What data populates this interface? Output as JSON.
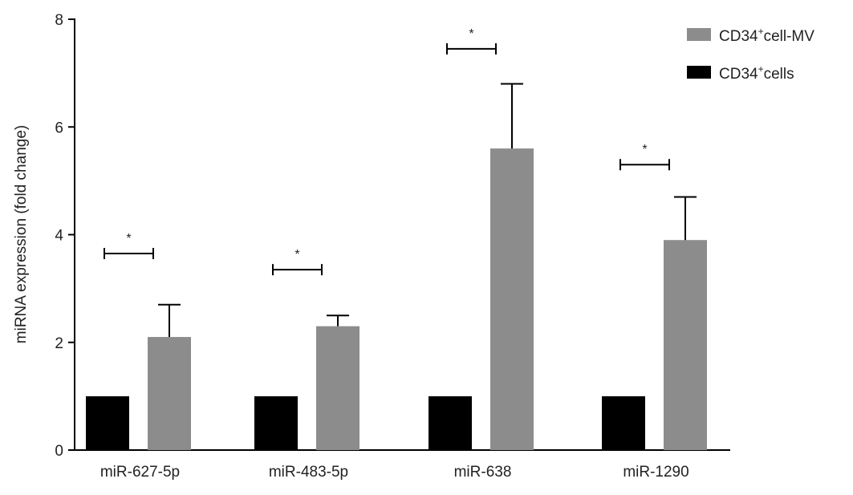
{
  "chart_data": {
    "type": "bar",
    "ylabel": "miRNA expression (fold change)",
    "ylim": [
      0,
      8
    ],
    "yticks": [
      0,
      2,
      4,
      6,
      8
    ],
    "categories": [
      "miR-627-5p",
      "miR-483-5p",
      "miR-638",
      "miR-1290"
    ],
    "series": [
      {
        "name_base": "CD34",
        "name_sup": "+",
        "name_rest": "cells",
        "color": "#000000",
        "values": [
          1,
          1,
          1,
          1
        ],
        "errors": [
          0,
          0,
          0,
          0
        ]
      },
      {
        "name_base": "CD34",
        "name_sup": "+",
        "name_rest": "cell-MV",
        "color": "#8c8c8c",
        "values": [
          2.1,
          2.3,
          5.6,
          3.9
        ],
        "errors": [
          0.6,
          0.2,
          1.2,
          0.8
        ]
      }
    ],
    "significance": [
      {
        "category": "miR-627-5p",
        "label": "*",
        "level": 3.65
      },
      {
        "category": "miR-483-5p",
        "label": "*",
        "level": 3.35
      },
      {
        "category": "miR-638",
        "label": "*",
        "level": 7.45
      },
      {
        "category": "miR-1290",
        "label": "*",
        "level": 5.3
      }
    ],
    "legend_position": "top-right",
    "legend_order": [
      1,
      0
    ],
    "grid": false
  }
}
